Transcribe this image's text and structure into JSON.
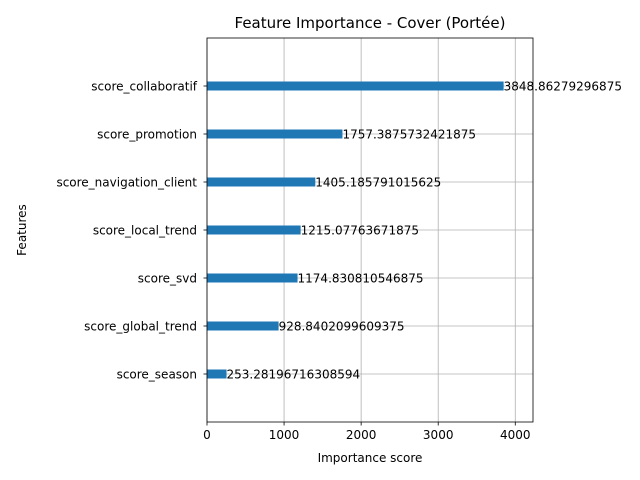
{
  "chart_data": {
    "type": "bar",
    "orientation": "horizontal",
    "title": "Feature Importance - Cover (Portée)",
    "xlabel": "Importance score",
    "ylabel": "Features",
    "xlim": [
      0,
      4230
    ],
    "xticks": [
      0,
      1000,
      2000,
      3000,
      4000
    ],
    "grid": true,
    "bar_color": "#1f77b4",
    "categories": [
      "score_collaboratif",
      "score_promotion",
      "score_navigation_client",
      "score_local_trend",
      "score_svd",
      "score_global_trend",
      "score_season"
    ],
    "values": [
      3848.86279296875,
      1757.3875732421875,
      1405.185791015625,
      1215.07763671875,
      1174.830810546875,
      928.8402099609375,
      253.28196716308594
    ],
    "value_labels": [
      "3848.86279296875",
      "1757.3875732421875",
      "1405.185791015625",
      "1215.07763671875",
      "1174.830810546875",
      "928.8402099609375",
      "253.28196716308594"
    ]
  }
}
